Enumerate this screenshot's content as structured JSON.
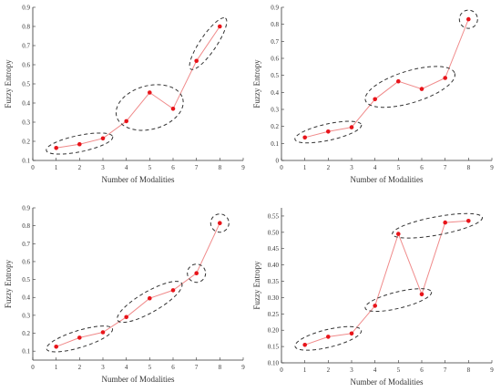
{
  "colors": {
    "point": "#e8141a",
    "line": "#f08a8a",
    "cluster_outline": "#333333",
    "axis": "#333333"
  },
  "chart_data": [
    {
      "type": "line",
      "xlabel": "Number of Modalities",
      "ylabel": "Fuzzy Entropy",
      "xlim": [
        0,
        9
      ],
      "ylim": [
        0.1,
        0.9
      ],
      "xticks": [
        "0",
        "1",
        "2",
        "3",
        "4",
        "5",
        "6",
        "7",
        "8",
        "9"
      ],
      "yticks": [
        "0.1",
        "0.2",
        "0.3",
        "0.4",
        "0.5",
        "0.6",
        "0.7",
        "0.8",
        "0.9"
      ],
      "x": [
        1,
        2,
        3,
        4,
        5,
        6,
        7,
        8
      ],
      "y": [
        0.165,
        0.185,
        0.215,
        0.305,
        0.455,
        0.37,
        0.62,
        0.8
      ],
      "clusters": [
        [
          1,
          2,
          3
        ],
        [
          4,
          5,
          6
        ],
        [
          7,
          8
        ]
      ]
    },
    {
      "type": "line",
      "xlabel": "Number of Modalities",
      "ylabel": "Fuzzy Entropy",
      "xlim": [
        0,
        9
      ],
      "ylim": [
        0,
        0.9
      ],
      "xticks": [
        "0",
        "1",
        "2",
        "3",
        "4",
        "5",
        "6",
        "7",
        "8",
        "9"
      ],
      "yticks": [
        "0",
        "0.1",
        "0.2",
        "0.3",
        "0.4",
        "0.5",
        "0.6",
        "0.7",
        "0.8",
        "0.9"
      ],
      "x": [
        1,
        2,
        3,
        4,
        5,
        6,
        7,
        8
      ],
      "y": [
        0.135,
        0.17,
        0.195,
        0.36,
        0.465,
        0.42,
        0.485,
        0.83
      ],
      "clusters": [
        [
          1,
          2,
          3
        ],
        [
          4,
          5,
          6,
          7
        ],
        [
          8
        ]
      ]
    },
    {
      "type": "line",
      "xlabel": "Number of Modalities",
      "ylabel": "Fuzzy Entropy",
      "xlim": [
        0,
        9
      ],
      "ylim": [
        0.05,
        0.9
      ],
      "xticks": [
        "0",
        "1",
        "2",
        "3",
        "4",
        "5",
        "6",
        "7",
        "8",
        "9"
      ],
      "yticks": [
        "0.1",
        "0.2",
        "0.3",
        "0.4",
        "0.5",
        "0.6",
        "0.7",
        "0.8",
        "0.9"
      ],
      "x": [
        1,
        2,
        3,
        4,
        5,
        6,
        7,
        8
      ],
      "y": [
        0.125,
        0.175,
        0.205,
        0.29,
        0.395,
        0.44,
        0.535,
        0.815
      ],
      "clusters": [
        [
          1,
          2,
          3
        ],
        [
          4,
          5,
          6
        ],
        [
          7
        ],
        [
          8
        ]
      ]
    },
    {
      "type": "line",
      "xlabel": "Number of Modalities",
      "ylabel": "Fuzzy Entropy",
      "xlim": [
        0,
        9
      ],
      "ylim": [
        0.1,
        0.575
      ],
      "xticks": [
        "0",
        "1",
        "2",
        "3",
        "4",
        "5",
        "6",
        "7",
        "8",
        "9"
      ],
      "yticks": [
        "0.10",
        "0.15",
        "0.20",
        "0.25",
        "0.30",
        "0.35",
        "0.40",
        "0.45",
        "0.50",
        "0.55"
      ],
      "x": [
        1,
        2,
        3,
        4,
        5,
        6,
        7,
        8
      ],
      "y": [
        0.155,
        0.18,
        0.19,
        0.275,
        0.495,
        0.31,
        0.53,
        0.535
      ],
      "clusters": [
        [
          1,
          2,
          3
        ],
        [
          4,
          6
        ],
        [
          5,
          7,
          8
        ]
      ]
    }
  ]
}
